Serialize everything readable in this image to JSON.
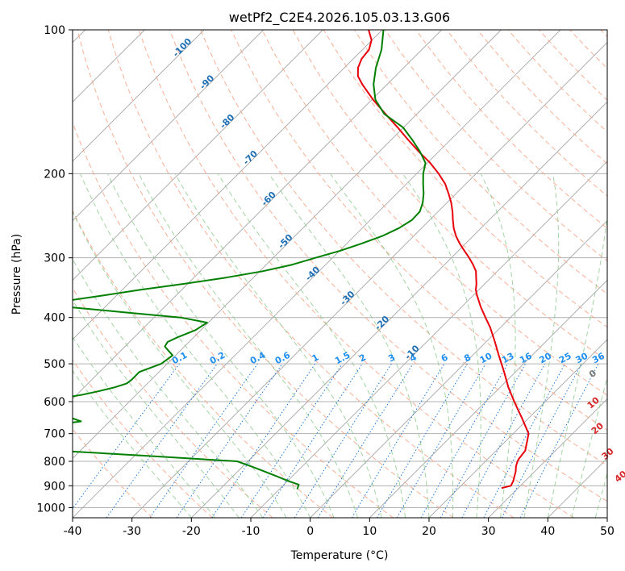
{
  "chart_data": {
    "type": "line",
    "title": "wetPf2_C2E4.2026.105.03.13.G06",
    "xlabel": "Temperature (°C)",
    "ylabel": "Pressure (hPa)",
    "xlim": [
      -40,
      50
    ],
    "ylim": [
      1050,
      100
    ],
    "y_scale": "log",
    "grid": true,
    "x_ticks": [
      -40,
      -30,
      -20,
      -10,
      0,
      10,
      20,
      30,
      40,
      50
    ],
    "y_ticks": [
      100,
      200,
      300,
      400,
      500,
      600,
      700,
      800,
      900,
      1000
    ],
    "skew_isotherm_labels": [
      {
        "value": -100,
        "p": 110
      },
      {
        "value": -90,
        "p": 130
      },
      {
        "value": -80,
        "p": 157
      },
      {
        "value": -70,
        "p": 187
      },
      {
        "value": -60,
        "p": 228
      },
      {
        "value": -50,
        "p": 280
      },
      {
        "value": -40,
        "p": 327
      },
      {
        "value": -30,
        "p": 368
      },
      {
        "value": -20,
        "p": 415
      },
      {
        "value": -10,
        "p": 478
      }
    ],
    "dry_adiabat_labels": [
      {
        "value": 0,
        "t": 24,
        "p": 530
      }
    ],
    "moist_adiabat_labels": [
      {
        "value": 10,
        "t": 29,
        "p": 610
      },
      {
        "value": 20,
        "t": 34,
        "p": 690
      },
      {
        "value": 30,
        "t": 40,
        "p": 780
      },
      {
        "value": 40,
        "t": 46,
        "p": 870
      }
    ],
    "mixing_ratio_labels": [
      "0.1",
      "0.2",
      "0.4",
      "0.6",
      "1",
      "1.5",
      "2",
      "3",
      "4",
      "6",
      "8",
      "10",
      "13",
      "16",
      "20",
      "25",
      "30",
      "36"
    ],
    "series": [
      {
        "role": "temperature",
        "color": "#e8000b",
        "p": [
          910,
          900,
          880,
          860,
          840,
          820,
          800,
          790,
          760,
          700,
          650,
          600,
          560,
          520,
          480,
          450,
          420,
          400,
          380,
          360,
          350,
          340,
          330,
          320,
          310,
          300,
          290,
          280,
          270,
          260,
          250,
          240,
          230,
          220,
          210,
          200,
          190,
          180,
          170,
          160,
          150,
          140,
          130,
          125,
          120,
          115,
          110,
          105,
          100
        ],
        "t": [
          27.2,
          28.4,
          28.0,
          27.4,
          26.8,
          26.0,
          25.4,
          25.2,
          24.9,
          22.6,
          18.9,
          14.8,
          11.4,
          8.1,
          4.4,
          1.5,
          -1.7,
          -4.2,
          -6.8,
          -9.3,
          -10.5,
          -11.4,
          -12.5,
          -13.6,
          -15.2,
          -17.0,
          -19.0,
          -21.0,
          -22.9,
          -24.6,
          -26.1,
          -27.6,
          -29.3,
          -31.3,
          -33.5,
          -36.3,
          -39.5,
          -43.3,
          -47.1,
          -51.0,
          -55.3,
          -59.8,
          -64.2,
          -66.3,
          -67.7,
          -68.6,
          -68.9,
          -70.1,
          -72.3
        ]
      },
      {
        "role": "dewpoint",
        "color": "#007f00",
        "p": [
          915,
          895,
          880,
          860,
          840,
          820,
          800,
          780,
          760,
          740,
          730,
          725,
          718,
          710,
          700,
          690,
          680,
          670,
          660,
          650,
          640,
          630,
          620,
          610,
          600,
          590,
          580,
          570,
          560,
          550,
          540,
          520,
          500,
          480,
          470,
          460,
          450,
          440,
          425,
          410,
          400,
          390,
          380,
          375,
          370,
          360,
          350,
          340,
          330,
          320,
          310,
          300,
          290,
          280,
          270,
          260,
          250,
          240,
          230,
          220,
          210,
          200,
          190,
          180,
          170,
          160,
          150,
          140,
          130,
          120,
          110,
          100
        ],
        "td": [
          -7.0,
          -7.5,
          -9.8,
          -12.6,
          -15.5,
          -18.5,
          -21.8,
          -37.2,
          -53.7,
          -64.7,
          -68.6,
          -69.3,
          -68.6,
          -69.5,
          -68.8,
          -67.8,
          -63.2,
          -58.2,
          -54.8,
          -56.8,
          -59.6,
          -62.9,
          -65.0,
          -66.2,
          -65.4,
          -61.9,
          -59.0,
          -56.8,
          -54.9,
          -53.5,
          -53.3,
          -53.3,
          -51.0,
          -50.5,
          -51.9,
          -53.3,
          -53.6,
          -52.7,
          -50.9,
          -50.2,
          -55.5,
          -65.9,
          -76.5,
          -79.7,
          -78.0,
          -72.5,
          -66.9,
          -60.6,
          -54.6,
          -49.5,
          -45.6,
          -42.9,
          -39.9,
          -37.5,
          -35.3,
          -33.8,
          -33.0,
          -33.1,
          -34.1,
          -35.5,
          -37.2,
          -38.9,
          -40.3,
          -43.1,
          -46.4,
          -50.1,
          -55.5,
          -59.4,
          -62.3,
          -64.7,
          -66.8,
          -69.8
        ]
      }
    ]
  }
}
